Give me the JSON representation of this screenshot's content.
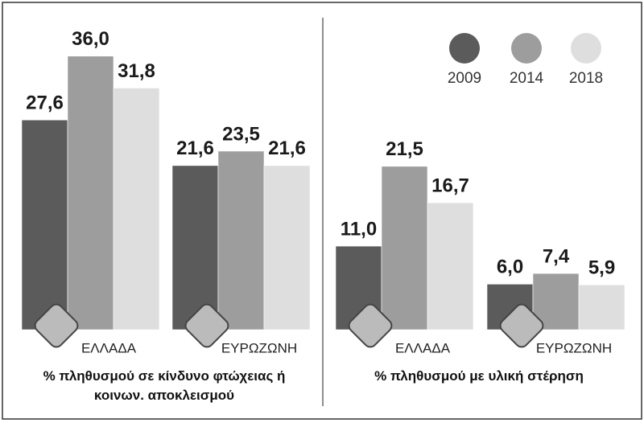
{
  "chart_data": [
    {
      "type": "bar",
      "title": "% πληθυσμού σε κίνδυνο φτώχειας ή κοινων. αποκλεισμού",
      "categories": [
        "ΕΛΛΑΔΑ",
        "ΕΥΡΩΖΩΝΗ"
      ],
      "series": [
        {
          "color": "#5b5b5b",
          "values": [
            27.6,
            21.6
          ],
          "value_labels": [
            "27,6",
            "21,6"
          ]
        },
        {
          "color": "#9d9d9d",
          "values": [
            36.0,
            23.5
          ],
          "value_labels": [
            "36,0",
            "23,5"
          ]
        },
        {
          "color": "#dedede",
          "values": [
            31.8,
            21.6
          ],
          "value_labels": [
            "31,8",
            "21,6"
          ]
        }
      ]
    },
    {
      "type": "bar",
      "title": "% πληθυσμού με υλική στέρηση",
      "categories": [
        "ΕΛΛΑΔΑ",
        "ΕΥΡΩΖΩΝΗ"
      ],
      "legend": "upper right",
      "series": [
        {
          "name": "2009",
          "color": "#5b5b5b",
          "values": [
            11.0,
            6.0
          ],
          "value_labels": [
            "11,0",
            "6,0"
          ]
        },
        {
          "name": "2014",
          "color": "#9d9d9d",
          "values": [
            21.5,
            7.4
          ],
          "value_labels": [
            "21,5",
            "7,4"
          ]
        },
        {
          "name": "2018",
          "color": "#dedede",
          "values": [
            16.7,
            5.9
          ],
          "value_labels": [
            "16,7",
            "5,9"
          ]
        }
      ]
    }
  ]
}
